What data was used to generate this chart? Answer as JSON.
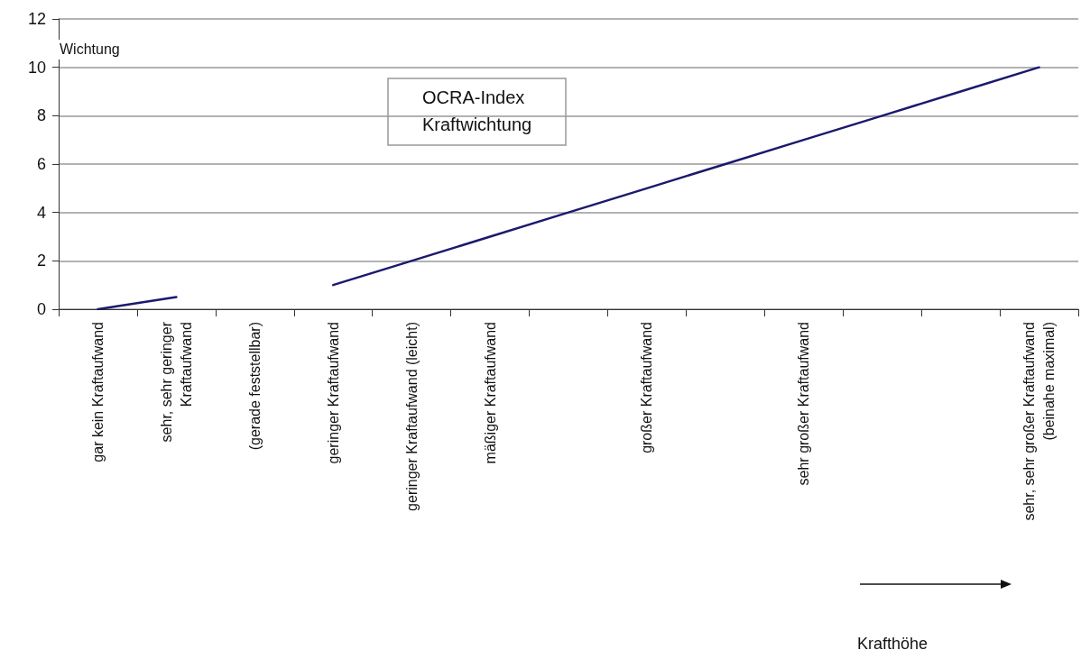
{
  "chart_data": {
    "type": "line",
    "title": "OCRA-Index\nKraftwichtung",
    "ylabel": "Wichtung",
    "annotations": [
      "Krafthöhe"
    ],
    "categories": [
      "gar kein Kraftaufwand",
      "sehr, sehr geringer\nKraftaufwand",
      "(gerade feststellbar)",
      "geringer Kraftaufwand",
      "geringer Kraftaufwand (leicht)",
      "mäßiger Kraftaufwand",
      null,
      "großer Kraftaufwand",
      null,
      "sehr großer Kraftaufwand",
      null,
      null,
      "sehr, sehr großer Kraftaufwand\n(beinahe maximal)"
    ],
    "series": [
      {
        "color": "#1a1a6e",
        "values": [
          0,
          0.5,
          null,
          1,
          2,
          3,
          4,
          5,
          6,
          7,
          8,
          9,
          10
        ]
      }
    ],
    "ylim": [
      0,
      12
    ],
    "yticks": [
      0,
      2,
      4,
      6,
      8,
      10,
      12
    ],
    "grid": "y",
    "marker": "none",
    "line_style": "solid"
  }
}
